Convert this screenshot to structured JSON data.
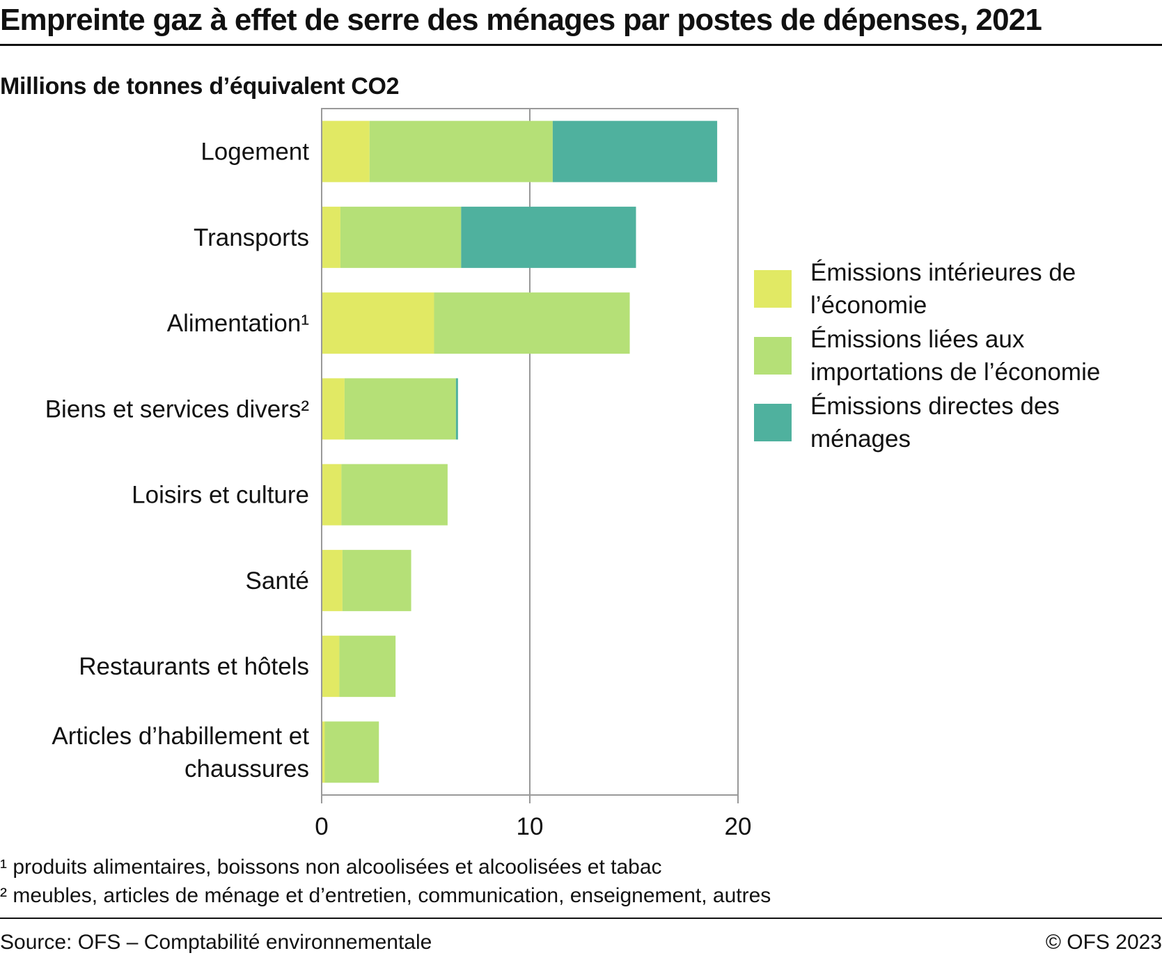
{
  "header": {
    "title": "Empreinte gaz à effet de serre des ménages par postes de dépenses, 2021",
    "subtitle": "Millions de tonnes d’équivalent CO2"
  },
  "chart_data": {
    "type": "bar",
    "orientation": "horizontal",
    "stacked": true,
    "title": "Empreinte gaz à effet de serre des ménages par postes de dépenses, 2021",
    "unit": "Millions de tonnes d’équivalent CO2",
    "categories": [
      [
        "Logement"
      ],
      [
        "Transports"
      ],
      [
        "Alimentation¹"
      ],
      [
        "Biens et services divers²"
      ],
      [
        "Loisirs et culture"
      ],
      [
        "Santé"
      ],
      [
        "Restaurants et hôtels"
      ],
      [
        "Articles d’habillement et",
        "chaussures"
      ]
    ],
    "series": [
      {
        "name": "Émissions intérieures de l’économie",
        "color": "#e1e964",
        "values": [
          2.3,
          0.9,
          5.4,
          1.1,
          0.95,
          1.0,
          0.85,
          0.15
        ]
      },
      {
        "name": "Émissions liées aux importations de l’économie",
        "color": "#b5e077",
        "values": [
          8.8,
          5.8,
          9.4,
          5.35,
          5.1,
          3.3,
          2.7,
          2.6
        ]
      },
      {
        "name": "Émissions directes des ménages",
        "color": "#4fb19e",
        "values": [
          7.9,
          8.4,
          0,
          0.1,
          0,
          0,
          0,
          0
        ]
      }
    ],
    "xlim": [
      0,
      20
    ],
    "xticks": [
      0,
      10,
      20
    ],
    "grid": true,
    "legend_position": "right"
  },
  "legend": {
    "items": [
      {
        "lines": [
          "Émissions intérieures de",
          "l’économie"
        ],
        "color": "#e1e964"
      },
      {
        "lines": [
          "Émissions liées aux",
          "importations de l’économie"
        ],
        "color": "#b5e077"
      },
      {
        "lines": [
          "Émissions directes des",
          "ménages"
        ],
        "color": "#4fb19e"
      }
    ]
  },
  "footnotes": [
    "¹ produits alimentaires, boissons non alcoolisées et alcoolisées et tabac",
    "² meubles, articles de ménage et d’entretien, communication, enseignement, autres"
  ],
  "footer": {
    "source": "Source: OFS – Comptabilité environnementale",
    "copyright": "© OFS 2023"
  }
}
